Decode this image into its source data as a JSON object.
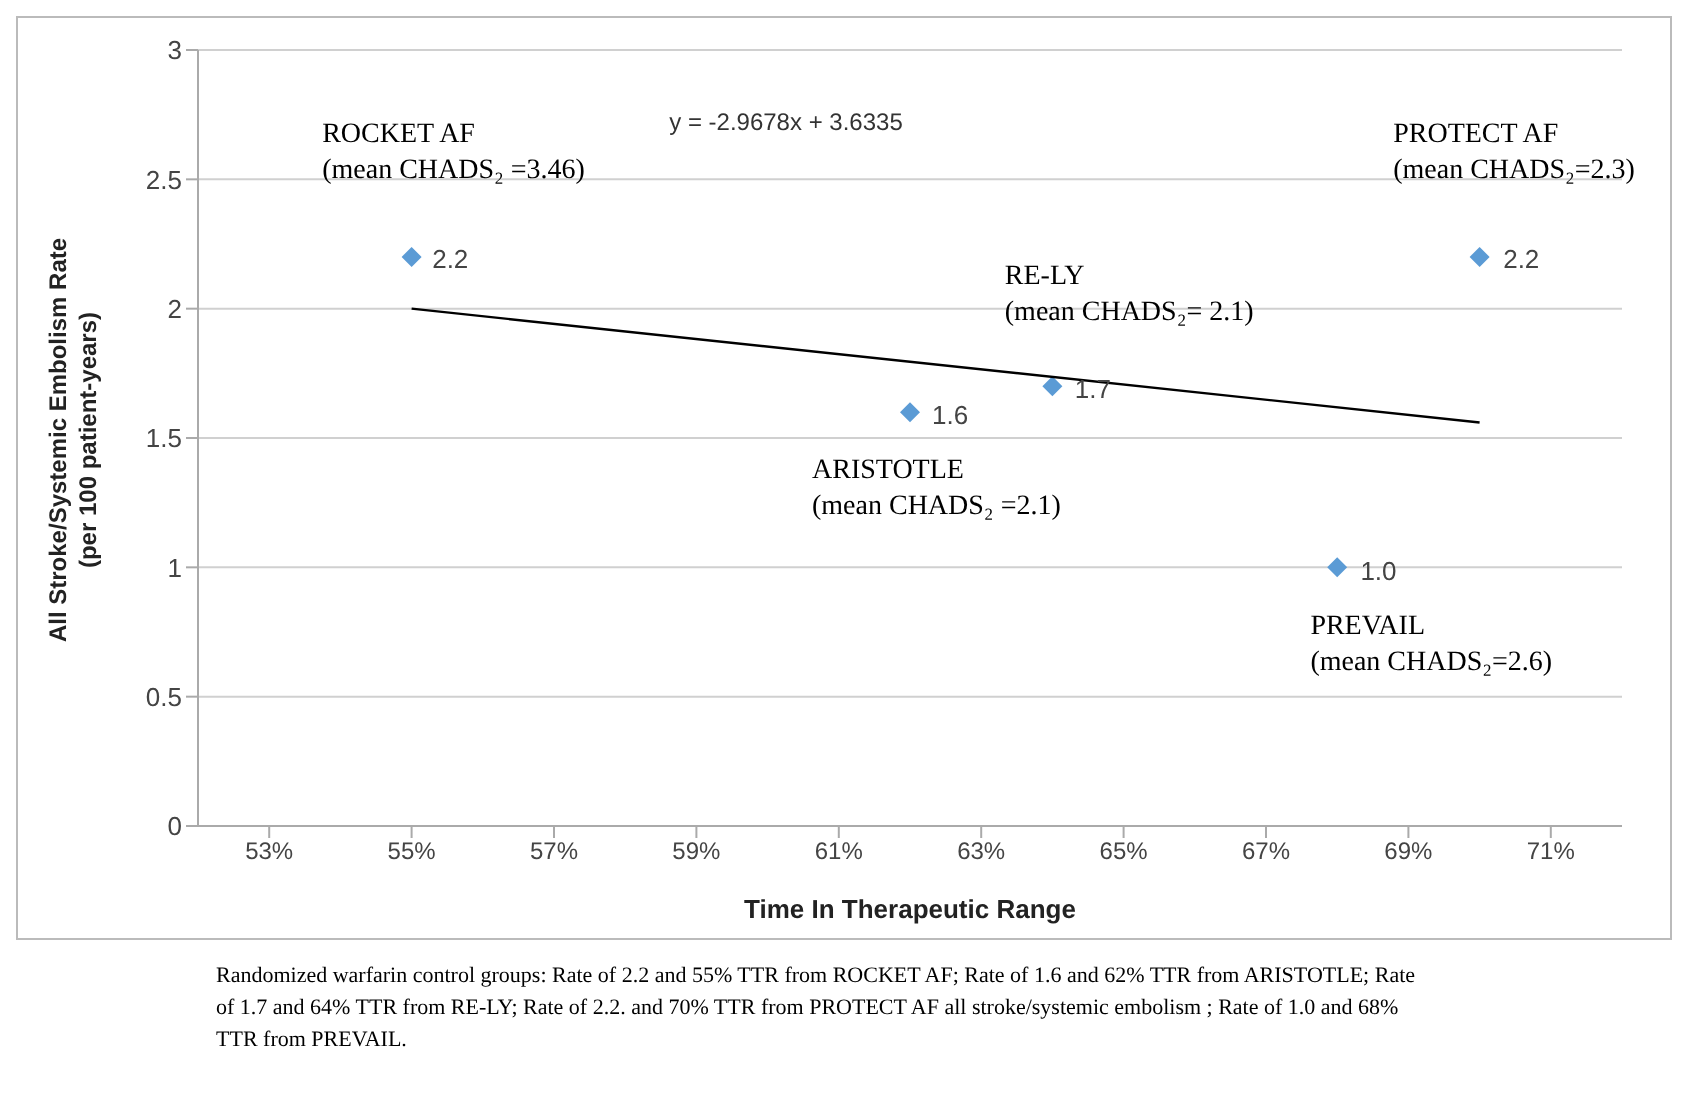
{
  "chart_data": {
    "type": "scatter",
    "xlabel": "Time In Therapeutic Range",
    "ylabel": "All Stroke/Systemic Embolism Rate\n(per 100 patient-years)",
    "xlim": [
      52,
      72
    ],
    "xticks": [
      {
        "value": 53,
        "label": "53%"
      },
      {
        "value": 55,
        "label": "55%"
      },
      {
        "value": 57,
        "label": "57%"
      },
      {
        "value": 59,
        "label": "59%"
      },
      {
        "value": 61,
        "label": "61%"
      },
      {
        "value": 63,
        "label": "63%"
      },
      {
        "value": 65,
        "label": "65%"
      },
      {
        "value": 67,
        "label": "67%"
      },
      {
        "value": 69,
        "label": "69%"
      },
      {
        "value": 71,
        "label": "71%"
      }
    ],
    "ylim": [
      0,
      3
    ],
    "yticks": [
      0,
      0.5,
      1,
      1.5,
      2,
      2.5,
      3
    ],
    "grid": "y",
    "marker": "diamond",
    "legend": false,
    "series": [
      {
        "color": "#5b9bd5",
        "x": [
          55,
          62,
          64,
          70,
          68
        ],
        "values": [
          2.2,
          1.6,
          1.7,
          2.2,
          1.0
        ],
        "value_labels": [
          "2.2",
          "1.6",
          "1.7",
          "2.2",
          "1.0"
        ]
      },
      {
        "type": "line",
        "marker": "none",
        "color": "#000000",
        "x": [
          55,
          70
        ],
        "values": [
          2.0,
          1.56
        ]
      }
    ],
    "annotations": [
      {
        "text": "ROCKET AF\n(mean CHADS₂ =3.46)",
        "x": 55,
        "y": 2.2
      },
      {
        "text": "ARISTOTLE\n(mean CHADS₂ =2.1)",
        "x": 62,
        "y": 1.6
      },
      {
        "text": "RE-LY\n(mean CHADS₂= 2.1)",
        "x": 64,
        "y": 1.7
      },
      {
        "text": "PROTECT AF\n(mean CHADS₂=2.3)",
        "x": 70,
        "y": 2.2
      },
      {
        "text": "PREVAIL\n(mean CHADS₂=2.6)",
        "x": 68,
        "y": 1.0
      },
      "y = -2.9678x + 3.6335",
      "Randomized warfarin control groups: Rate of 2.2 and 55% TTR from ROCKET AF; Rate of 1.6 and 62% TTR from ARISTOTLE; Rate of 1.7 and 64% TTR from RE-LY; Rate of 2.2. and 70% TTR from PROTECT AF all stroke/systemic embolism ; Rate of 1.0 and 68% TTR from PREVAIL."
    ]
  }
}
